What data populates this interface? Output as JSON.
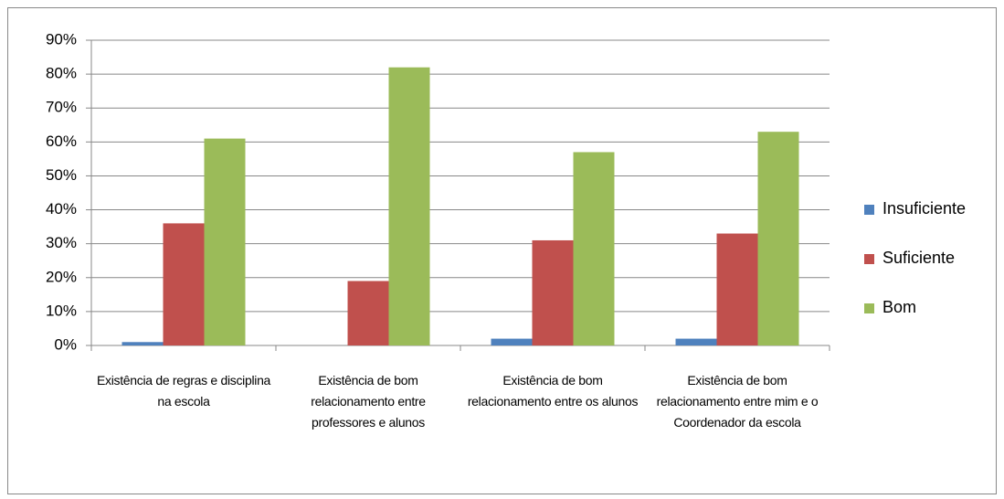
{
  "chart_data": {
    "type": "bar",
    "categories": [
      "Existência de regras e disciplina na escola",
      "Existência de bom relacionamento entre professores e alunos",
      "Existência de bom relacionamento entre os alunos",
      "Existência de bom relacionamento entre mim e o Coordenador da escola"
    ],
    "series": [
      {
        "name": "Insuficiente",
        "color": "#4f81bd",
        "values": [
          1,
          0,
          2,
          2
        ]
      },
      {
        "name": "Suficiente",
        "color": "#c0504d",
        "values": [
          36,
          19,
          31,
          33
        ]
      },
      {
        "name": "Bom",
        "color": "#9bbb59",
        "values": [
          61,
          82,
          57,
          63
        ]
      }
    ],
    "ylim": [
      0,
      90
    ],
    "yticks": [
      {
        "value": 0,
        "label": "0%"
      },
      {
        "value": 10,
        "label": "10%"
      },
      {
        "value": 20,
        "label": "20%"
      },
      {
        "value": 30,
        "label": "30%"
      },
      {
        "value": 40,
        "label": "40%"
      },
      {
        "value": 50,
        "label": "50%"
      },
      {
        "value": 60,
        "label": "60%"
      },
      {
        "value": 70,
        "label": "70%"
      },
      {
        "value": 80,
        "label": "80%"
      },
      {
        "value": 90,
        "label": "90%"
      }
    ],
    "grid": true,
    "legend": "right"
  }
}
